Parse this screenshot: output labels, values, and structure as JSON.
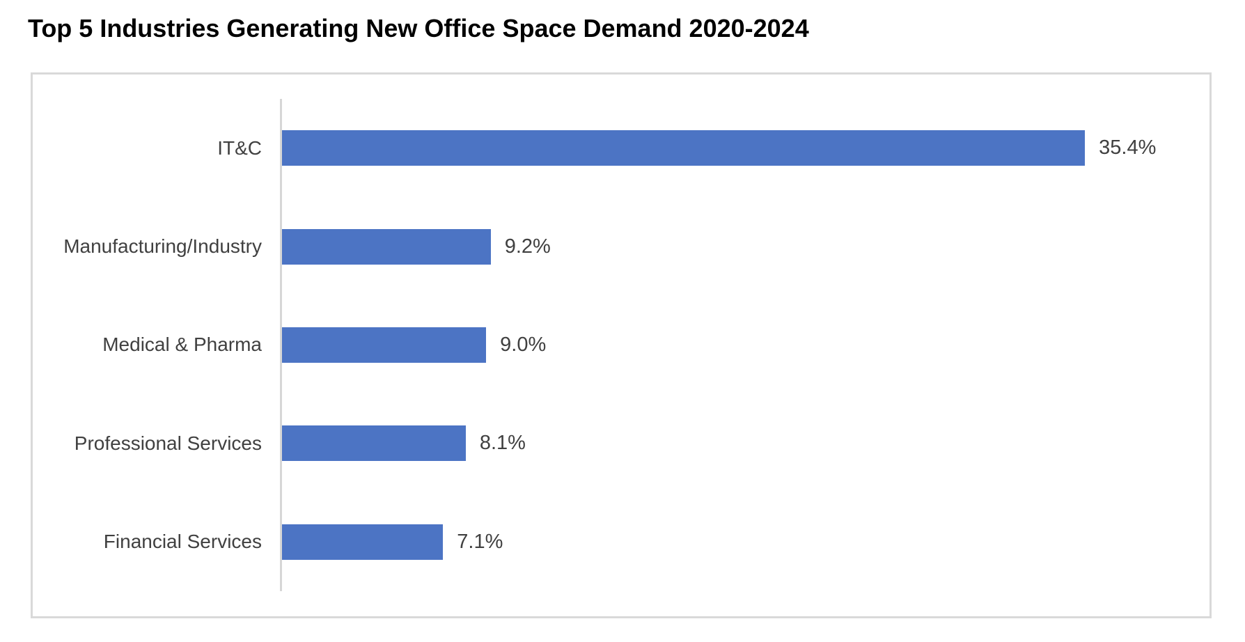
{
  "chart_data": {
    "type": "bar",
    "orientation": "horizontal",
    "title": "Top 5 Industries Generating New Office Space Demand 2020-2024",
    "categories": [
      "IT&C",
      "Manufacturing/Industry",
      "Medical & Pharma",
      "Professional Services",
      "Financial Services"
    ],
    "values": [
      35.4,
      9.2,
      9.0,
      8.1,
      7.1
    ],
    "value_labels": [
      "35.4%",
      "9.2%",
      "9.0%",
      "8.1%",
      "7.1%"
    ],
    "xlabel": "",
    "ylabel": "",
    "xlim": [
      0,
      40
    ],
    "grid": false,
    "legend": false,
    "colors": {
      "bar": "#4C74C4",
      "label_text": "#404040",
      "title_text": "#000000",
      "axis_line": "#D6D6D6",
      "chart_border": "#D9D9D9",
      "background": "#FFFFFF"
    }
  }
}
